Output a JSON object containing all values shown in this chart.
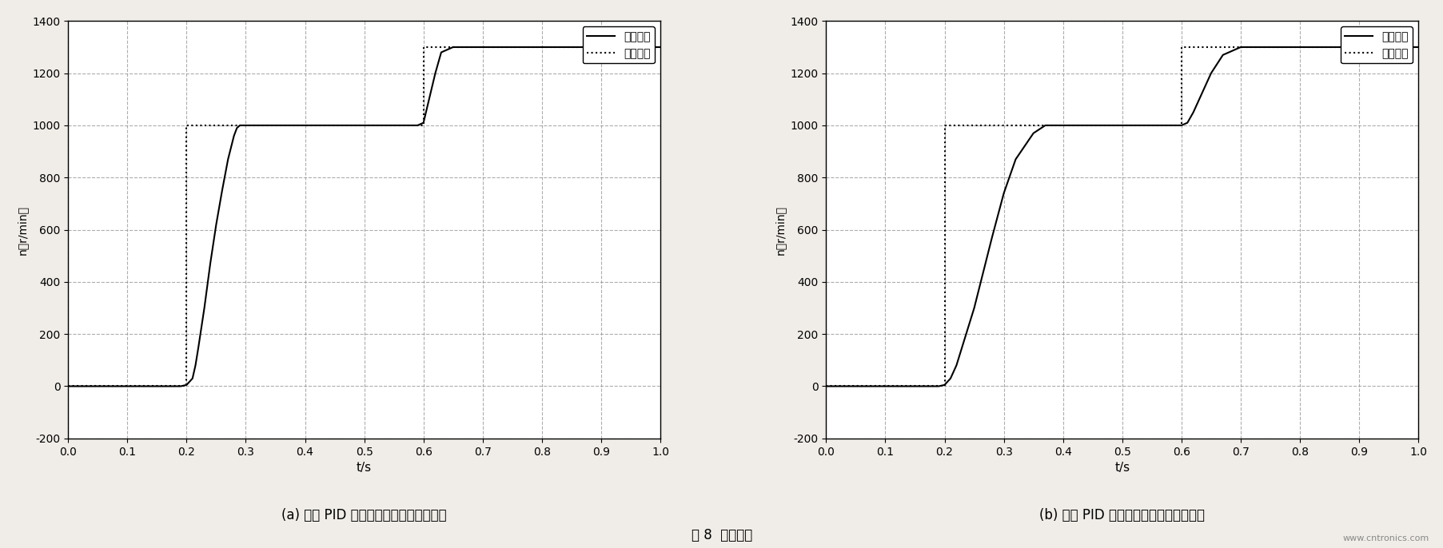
{
  "fig_width": 18.06,
  "fig_height": 6.86,
  "background_color": "#f0ede8",
  "plot_background": "#ffffff",
  "left_plot": {
    "title_a": "(a) ",
    "title_b": "常规 PID 控制下的系统跟踪特能曲线",
    "xlabel_t": "t",
    "xlabel_s": "/s",
    "ylabel": "n（r/min）",
    "xlim": [
      0,
      1.0
    ],
    "ylim": [
      -200,
      1400
    ],
    "xticks": [
      0,
      0.1,
      0.2,
      0.3,
      0.4,
      0.5,
      0.6,
      0.7,
      0.8,
      0.9,
      1.0
    ],
    "yticks": [
      -200,
      0,
      200,
      400,
      600,
      800,
      1000,
      1200,
      1400
    ],
    "response_x": [
      0,
      0.19,
      0.2,
      0.21,
      0.215,
      0.22,
      0.23,
      0.24,
      0.25,
      0.26,
      0.27,
      0.28,
      0.285,
      0.29,
      0.295,
      0.3,
      0.59,
      0.6,
      0.62,
      0.63,
      0.65,
      0.67,
      0.7,
      1.0
    ],
    "response_y": [
      0,
      0,
      5,
      30,
      80,
      150,
      300,
      470,
      620,
      750,
      870,
      960,
      990,
      1000,
      1000,
      1000,
      1000,
      1010,
      1200,
      1280,
      1300,
      1300,
      1300,
      1300
    ],
    "input_x": [
      0,
      0.2,
      0.2,
      0.6,
      0.6,
      1.0
    ],
    "input_y": [
      0,
      0,
      1000,
      1000,
      1300,
      1300
    ],
    "legend_label_response": "响应曲线",
    "legend_label_input": "输入信号"
  },
  "right_plot": {
    "title_a": "(b) ",
    "title_b": "模糊 PID 控制下的系统跟踪特能曲线",
    "xlabel_t": "t",
    "xlabel_s": "/s",
    "ylabel": "n（r/min）",
    "xlim": [
      0,
      1.0
    ],
    "ylim": [
      -200,
      1400
    ],
    "xticks": [
      0,
      0.1,
      0.2,
      0.3,
      0.4,
      0.5,
      0.6,
      0.7,
      0.8,
      0.9,
      1.0
    ],
    "yticks": [
      -200,
      0,
      200,
      400,
      600,
      800,
      1000,
      1200,
      1400
    ],
    "response_x": [
      0,
      0.19,
      0.2,
      0.21,
      0.22,
      0.25,
      0.28,
      0.3,
      0.32,
      0.35,
      0.37,
      0.38,
      0.39,
      0.6,
      0.61,
      0.62,
      0.65,
      0.67,
      0.7,
      0.72,
      1.0
    ],
    "response_y": [
      0,
      0,
      5,
      30,
      80,
      300,
      570,
      740,
      870,
      970,
      1000,
      1000,
      1000,
      1000,
      1010,
      1050,
      1200,
      1270,
      1300,
      1300,
      1300
    ],
    "input_x": [
      0,
      0.2,
      0.2,
      0.6,
      0.6,
      1.0
    ],
    "input_y": [
      0,
      0,
      1000,
      1000,
      1300,
      1300
    ],
    "legend_label_response": "响应曲线",
    "legend_label_input": "输入信号"
  },
  "figure_caption": "图 8  实验结果",
  "watermark": "www.cntronics.com",
  "line_color": "#000000",
  "grid_color": "#999999",
  "grid_style": "--",
  "grid_alpha": 0.8
}
